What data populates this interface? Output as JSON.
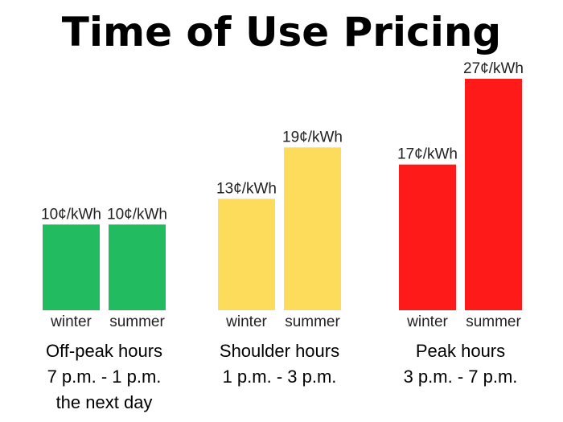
{
  "chart_data": {
    "type": "bar",
    "title": "Time of Use Pricing",
    "unit_suffix": "¢/kWh",
    "xlabel": "",
    "ylabel": "",
    "ylim": [
      0,
      27
    ],
    "grid": false,
    "legend": "none",
    "groups": [
      {
        "name": "Off-peak hours",
        "time_lines": [
          "7 p.m. - 1 p.m.",
          "the next day"
        ],
        "color": "#22bb5f",
        "bars": [
          {
            "season": "winter",
            "value": 10,
            "label": "10¢/kWh"
          },
          {
            "season": "summer",
            "value": 10,
            "label": "10¢/kWh"
          }
        ]
      },
      {
        "name": "Shoulder hours",
        "time_lines": [
          "1 p.m. - 3 p.m."
        ],
        "color": "#fddc5c",
        "bars": [
          {
            "season": "winter",
            "value": 13,
            "label": "13¢/kWh"
          },
          {
            "season": "summer",
            "value": 19,
            "label": "19¢/kWh"
          }
        ]
      },
      {
        "name": "Peak hours",
        "time_lines": [
          "3 p.m. - 7 p.m."
        ],
        "color": "#ff1a1a",
        "bars": [
          {
            "season": "winter",
            "value": 17,
            "label": "17¢/kWh"
          },
          {
            "season": "summer",
            "value": 27,
            "label": "27¢/kWh"
          }
        ]
      }
    ]
  }
}
